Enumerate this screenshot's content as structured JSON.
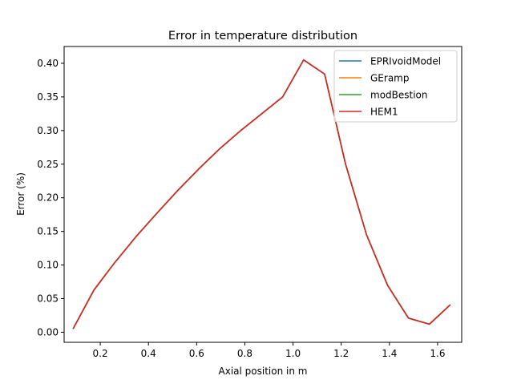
{
  "chart_data": {
    "type": "line",
    "title": "Error in temperature distribution",
    "xlabel": "Axial position in m",
    "ylabel": "Error (%)",
    "xlim": [
      0.05,
      1.7
    ],
    "ylim": [
      -0.015,
      0.425
    ],
    "xticks": [
      0.2,
      0.4,
      0.6,
      0.8,
      1.0,
      1.2,
      1.4,
      1.6
    ],
    "xtick_labels": [
      "0.2",
      "0.4",
      "0.6",
      "0.8",
      "1.0",
      "1.2",
      "1.4",
      "1.6"
    ],
    "yticks": [
      0.0,
      0.05,
      0.1,
      0.15,
      0.2,
      0.25,
      0.3,
      0.35,
      0.4
    ],
    "ytick_labels": [
      "0.00",
      "0.05",
      "0.10",
      "0.15",
      "0.20",
      "0.25",
      "0.30",
      "0.35",
      "0.40"
    ],
    "grid": false,
    "legend_position": "top-right",
    "x": [
      0.087,
      0.174,
      0.261,
      0.348,
      0.435,
      0.522,
      0.609,
      0.696,
      0.783,
      0.87,
      0.957,
      1.044,
      1.131,
      1.218,
      1.305,
      1.392,
      1.479,
      1.566,
      1.653
    ],
    "series": [
      {
        "name": "EPRIvoidModel",
        "color": "#1f77b4",
        "values": [
          0.005,
          0.063,
          0.104,
          0.142,
          0.177,
          0.211,
          0.243,
          0.273,
          0.3,
          0.325,
          0.35,
          0.405,
          0.384,
          0.25,
          0.145,
          0.07,
          0.021,
          0.012,
          0.041
        ]
      },
      {
        "name": "GEramp",
        "color": "#ff7f0e",
        "values": [
          0.005,
          0.063,
          0.104,
          0.142,
          0.177,
          0.211,
          0.243,
          0.273,
          0.3,
          0.325,
          0.35,
          0.405,
          0.384,
          0.25,
          0.145,
          0.07,
          0.021,
          0.012,
          0.041
        ]
      },
      {
        "name": "modBestion",
        "color": "#2ca02c",
        "values": [
          0.005,
          0.063,
          0.104,
          0.142,
          0.177,
          0.211,
          0.243,
          0.273,
          0.3,
          0.325,
          0.35,
          0.405,
          0.384,
          0.25,
          0.145,
          0.07,
          0.021,
          0.012,
          0.041
        ]
      },
      {
        "name": "HEM1",
        "color": "#d62728",
        "values": [
          0.005,
          0.063,
          0.104,
          0.142,
          0.177,
          0.211,
          0.243,
          0.273,
          0.3,
          0.325,
          0.35,
          0.405,
          0.384,
          0.25,
          0.145,
          0.07,
          0.021,
          0.012,
          0.041
        ]
      }
    ]
  }
}
